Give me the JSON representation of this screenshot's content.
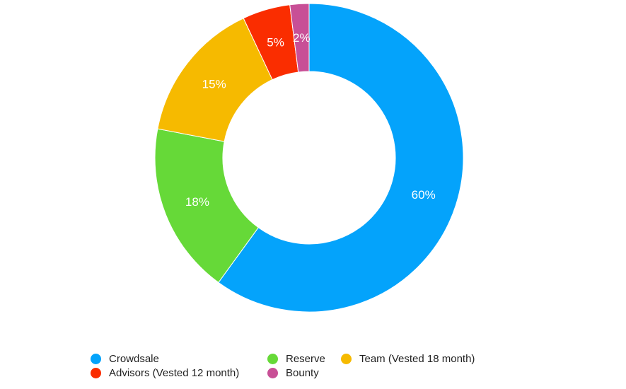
{
  "chart_data": {
    "type": "pie",
    "variant": "donut",
    "title": "",
    "legend_position": "bottom",
    "categories": [
      "Crowdsale",
      "Reserve",
      "Team (Vested 18 month)",
      "Advisors (Vested 12 month)",
      "Bounty"
    ],
    "values": [
      60,
      18,
      15,
      5,
      2
    ],
    "value_labels": [
      "60%",
      "18%",
      "15%",
      "5%",
      "2%"
    ],
    "colors": [
      "#04a3fb",
      "#66d938",
      "#f6ba00",
      "#fa2d00",
      "#c84f96"
    ]
  }
}
